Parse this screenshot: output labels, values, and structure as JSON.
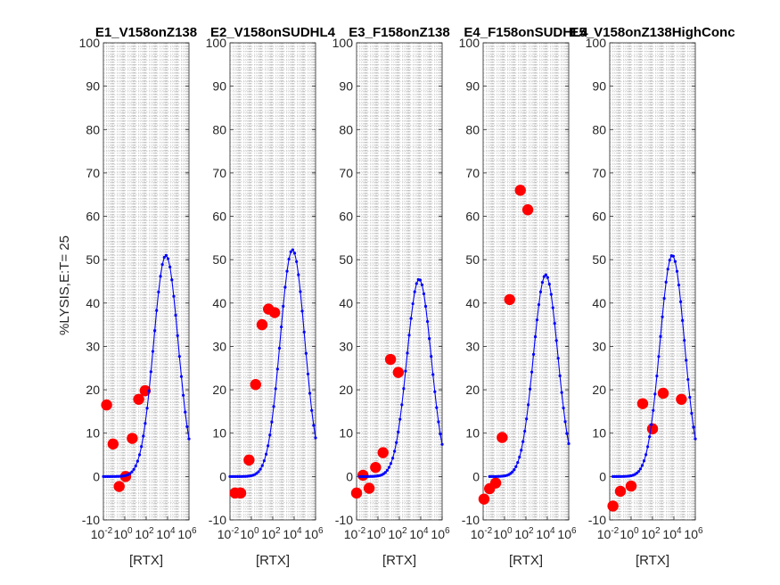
{
  "figure": {
    "ylabel": "%LYSIS,E:T= 25",
    "xlabel": "[RTX]"
  },
  "chart_data": [
    {
      "type": "scatter",
      "title": "E1_V158onZ138",
      "xlabel": "[RTX]",
      "ylabel": "%LYSIS,E:T= 25",
      "xscale": "log",
      "xlim": [
        0.01,
        1000000
      ],
      "ylim": [
        -10,
        100
      ],
      "xticks": [
        0.01,
        1,
        100,
        10000,
        1000000
      ],
      "xtick_labels": [
        "10-2",
        "100",
        "102",
        "104",
        "106"
      ],
      "yticks": [
        -10,
        0,
        10,
        20,
        30,
        40,
        50,
        60,
        70,
        80,
        90,
        100
      ],
      "grid": "minor dashed",
      "series": [
        {
          "kind": "points",
          "color": "#ff0000",
          "x": [
            0.02,
            0.08,
            0.3,
            1.2,
            5,
            20,
            80
          ],
          "y": [
            16.5,
            7.5,
            -2.3,
            0,
            8.8,
            17.8,
            19.8
          ]
        },
        {
          "kind": "fit",
          "color": "#0000ff",
          "ymax": 51,
          "xpeak": 7000,
          "width": 1.62,
          "xmin": 0.01,
          "xmax": 1000000
        }
      ]
    },
    {
      "type": "scatter",
      "title": "E2_V158onSUDHL4",
      "xlabel": "[RTX]",
      "xscale": "log",
      "xlim": [
        0.01,
        1000000
      ],
      "ylim": [
        -10,
        100
      ],
      "xticks": [
        0.01,
        1,
        100,
        10000,
        1000000
      ],
      "xtick_labels": [
        "10-2",
        "100",
        "102",
        "104",
        "106"
      ],
      "yticks": [
        -10,
        0,
        10,
        20,
        30,
        40,
        50,
        60,
        70,
        80,
        90,
        100
      ],
      "grid": "minor dashed",
      "series": [
        {
          "kind": "points",
          "color": "#ff0000",
          "x": [
            0.03,
            0.1,
            0.6,
            2.5,
            10,
            40,
            150
          ],
          "y": [
            -3.8,
            -3.8,
            3.8,
            21.2,
            35,
            38.6,
            37.8
          ]
        },
        {
          "kind": "fit",
          "color": "#0000ff",
          "ymax": 52.3,
          "xpeak": 7000,
          "width": 1.62,
          "xmin": 0.01,
          "xmax": 1000000
        }
      ]
    },
    {
      "type": "scatter",
      "title": "E3_F158onZ138",
      "xlabel": "[RTX]",
      "xscale": "log",
      "xlim": [
        0.01,
        1000000
      ],
      "ylim": [
        -10,
        100
      ],
      "xticks": [
        0.01,
        1,
        100,
        10000,
        1000000
      ],
      "xtick_labels": [
        "10-2",
        "100",
        "102",
        "104",
        "106"
      ],
      "yticks": [
        -10,
        0,
        10,
        20,
        30,
        40,
        50,
        60,
        70,
        80,
        90,
        100
      ],
      "grid": "minor dashed",
      "series": [
        {
          "kind": "points",
          "color": "#ff0000",
          "x": [
            0.01,
            0.04,
            0.15,
            0.6,
            3,
            15,
            80
          ],
          "y": [
            -3.8,
            0.3,
            -2.7,
            2.1,
            5.5,
            27,
            24
          ]
        },
        {
          "kind": "fit",
          "color": "#0000ff",
          "ymax": 45.5,
          "xpeak": 7000,
          "width": 1.6,
          "xmin": 0.02,
          "xmax": 1000000
        }
      ]
    },
    {
      "type": "scatter",
      "title": "E4_F158onSUDHL4",
      "xlabel": "[RTX]",
      "xscale": "log",
      "xlim": [
        0.01,
        1000000
      ],
      "ylim": [
        -10,
        100
      ],
      "xticks": [
        0.01,
        1,
        100,
        10000,
        1000000
      ],
      "xtick_labels": [
        "10-2",
        "100",
        "102",
        "104",
        "106"
      ],
      "yticks": [
        -10,
        0,
        10,
        20,
        30,
        40,
        50,
        60,
        70,
        80,
        90,
        100
      ],
      "grid": "minor dashed",
      "series": [
        {
          "kind": "points",
          "color": "#ff0000",
          "x": [
            0.012,
            0.04,
            0.15,
            0.6,
            3,
            30,
            150
          ],
          "y": [
            -5.2,
            -2.8,
            -1.5,
            9,
            40.8,
            66,
            61.5
          ]
        },
        {
          "kind": "fit",
          "color": "#0000ff",
          "ymax": 46.5,
          "xpeak": 7000,
          "width": 1.6,
          "xmin": 0.04,
          "xmax": 1000000
        }
      ]
    },
    {
      "type": "scatter",
      "title": "E5_V158onZ138HighConc",
      "xlabel": "[RTX]",
      "xscale": "log",
      "xlim": [
        0.01,
        1000000
      ],
      "ylim": [
        -10,
        100
      ],
      "xticks": [
        0.01,
        1,
        100,
        10000,
        1000000
      ],
      "xtick_labels": [
        "10-2",
        "100",
        "102",
        "104",
        "106"
      ],
      "yticks": [
        -10,
        0,
        10,
        20,
        30,
        40,
        50,
        60,
        70,
        80,
        90,
        100
      ],
      "grid": "minor dashed",
      "series": [
        {
          "kind": "points",
          "color": "#ff0000",
          "x": [
            0.02,
            0.1,
            1,
            12,
            100,
            1000,
            50000
          ],
          "y": [
            -6.8,
            -3.4,
            -2.2,
            16.8,
            11,
            19.2,
            17.8
          ]
        },
        {
          "kind": "fit",
          "color": "#0000ff",
          "ymax": 51,
          "xpeak": 7000,
          "width": 1.62,
          "xmin": 0.02,
          "xmax": 1000000
        }
      ]
    }
  ]
}
